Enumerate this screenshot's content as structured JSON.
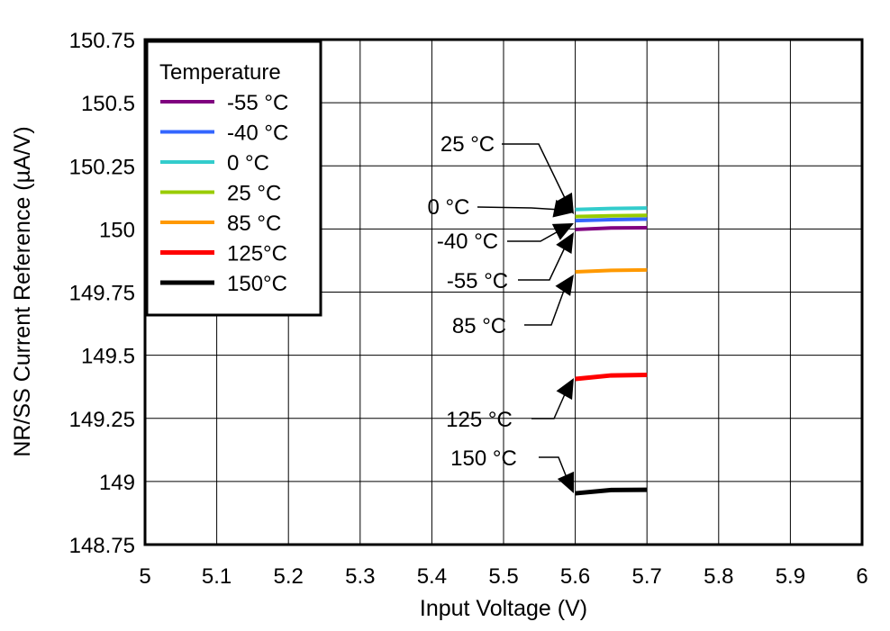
{
  "chart_data": {
    "type": "line",
    "title": "",
    "xlabel": "Input Voltage (V)",
    "ylabel": "NR/SS Current Reference (µA/V)",
    "xlim": [
      5,
      6
    ],
    "ylim": [
      148.75,
      150.75
    ],
    "xticks": [
      "5",
      "5.1",
      "5.2",
      "5.3",
      "5.4",
      "5.5",
      "5.6",
      "5.7",
      "5.8",
      "5.9",
      "6"
    ],
    "yticks": [
      "148.75",
      "149",
      "149.25",
      "149.5",
      "149.75",
      "150",
      "150.25",
      "150.5",
      "150.75"
    ],
    "grid": true,
    "legend": {
      "title": "Temperature",
      "placement": "top-left"
    },
    "series": [
      {
        "name": "-55 °C",
        "color": "#800080",
        "x": [
          5.6,
          5.65,
          5.7
        ],
        "y": [
          149.998,
          150.004,
          150.005
        ]
      },
      {
        "name": "-40 °C",
        "color": "#3366ff",
        "x": [
          5.6,
          5.65,
          5.7
        ],
        "y": [
          150.033,
          150.037,
          150.039
        ]
      },
      {
        "name": "0 °C",
        "color": "#33cccc",
        "x": [
          5.6,
          5.65,
          5.7
        ],
        "y": [
          150.077,
          150.081,
          150.083
        ]
      },
      {
        "name": "25 °C",
        "color": "#99cc00",
        "x": [
          5.6,
          5.65,
          5.7
        ],
        "y": [
          150.049,
          150.052,
          150.054
        ]
      },
      {
        "name": "85 °C",
        "color": "#ff9900",
        "x": [
          5.6,
          5.65,
          5.7
        ],
        "y": [
          149.83,
          149.836,
          149.838
        ]
      },
      {
        "name": "125°C",
        "color": "#ff0000",
        "x": [
          5.6,
          5.65,
          5.7
        ],
        "y": [
          149.406,
          149.42,
          149.422
        ]
      },
      {
        "name": "150°C",
        "color": "#000000",
        "x": [
          5.6,
          5.65,
          5.7
        ],
        "y": [
          148.953,
          148.966,
          148.967
        ]
      }
    ],
    "annotations": [
      {
        "text": "25 °C",
        "x": 5.6,
        "y": 150.049
      },
      {
        "text": "0 °C",
        "x": 5.6,
        "y": 150.077
      },
      {
        "text": "-40 °C",
        "x": 5.6,
        "y": 150.033
      },
      {
        "text": "-55 °C",
        "x": 5.6,
        "y": 149.998
      },
      {
        "text": "85 °C",
        "x": 5.6,
        "y": 149.83
      },
      {
        "text": "125 °C",
        "x": 5.6,
        "y": 149.406
      },
      {
        "text": "150 °C",
        "x": 5.6,
        "y": 148.953
      }
    ]
  }
}
